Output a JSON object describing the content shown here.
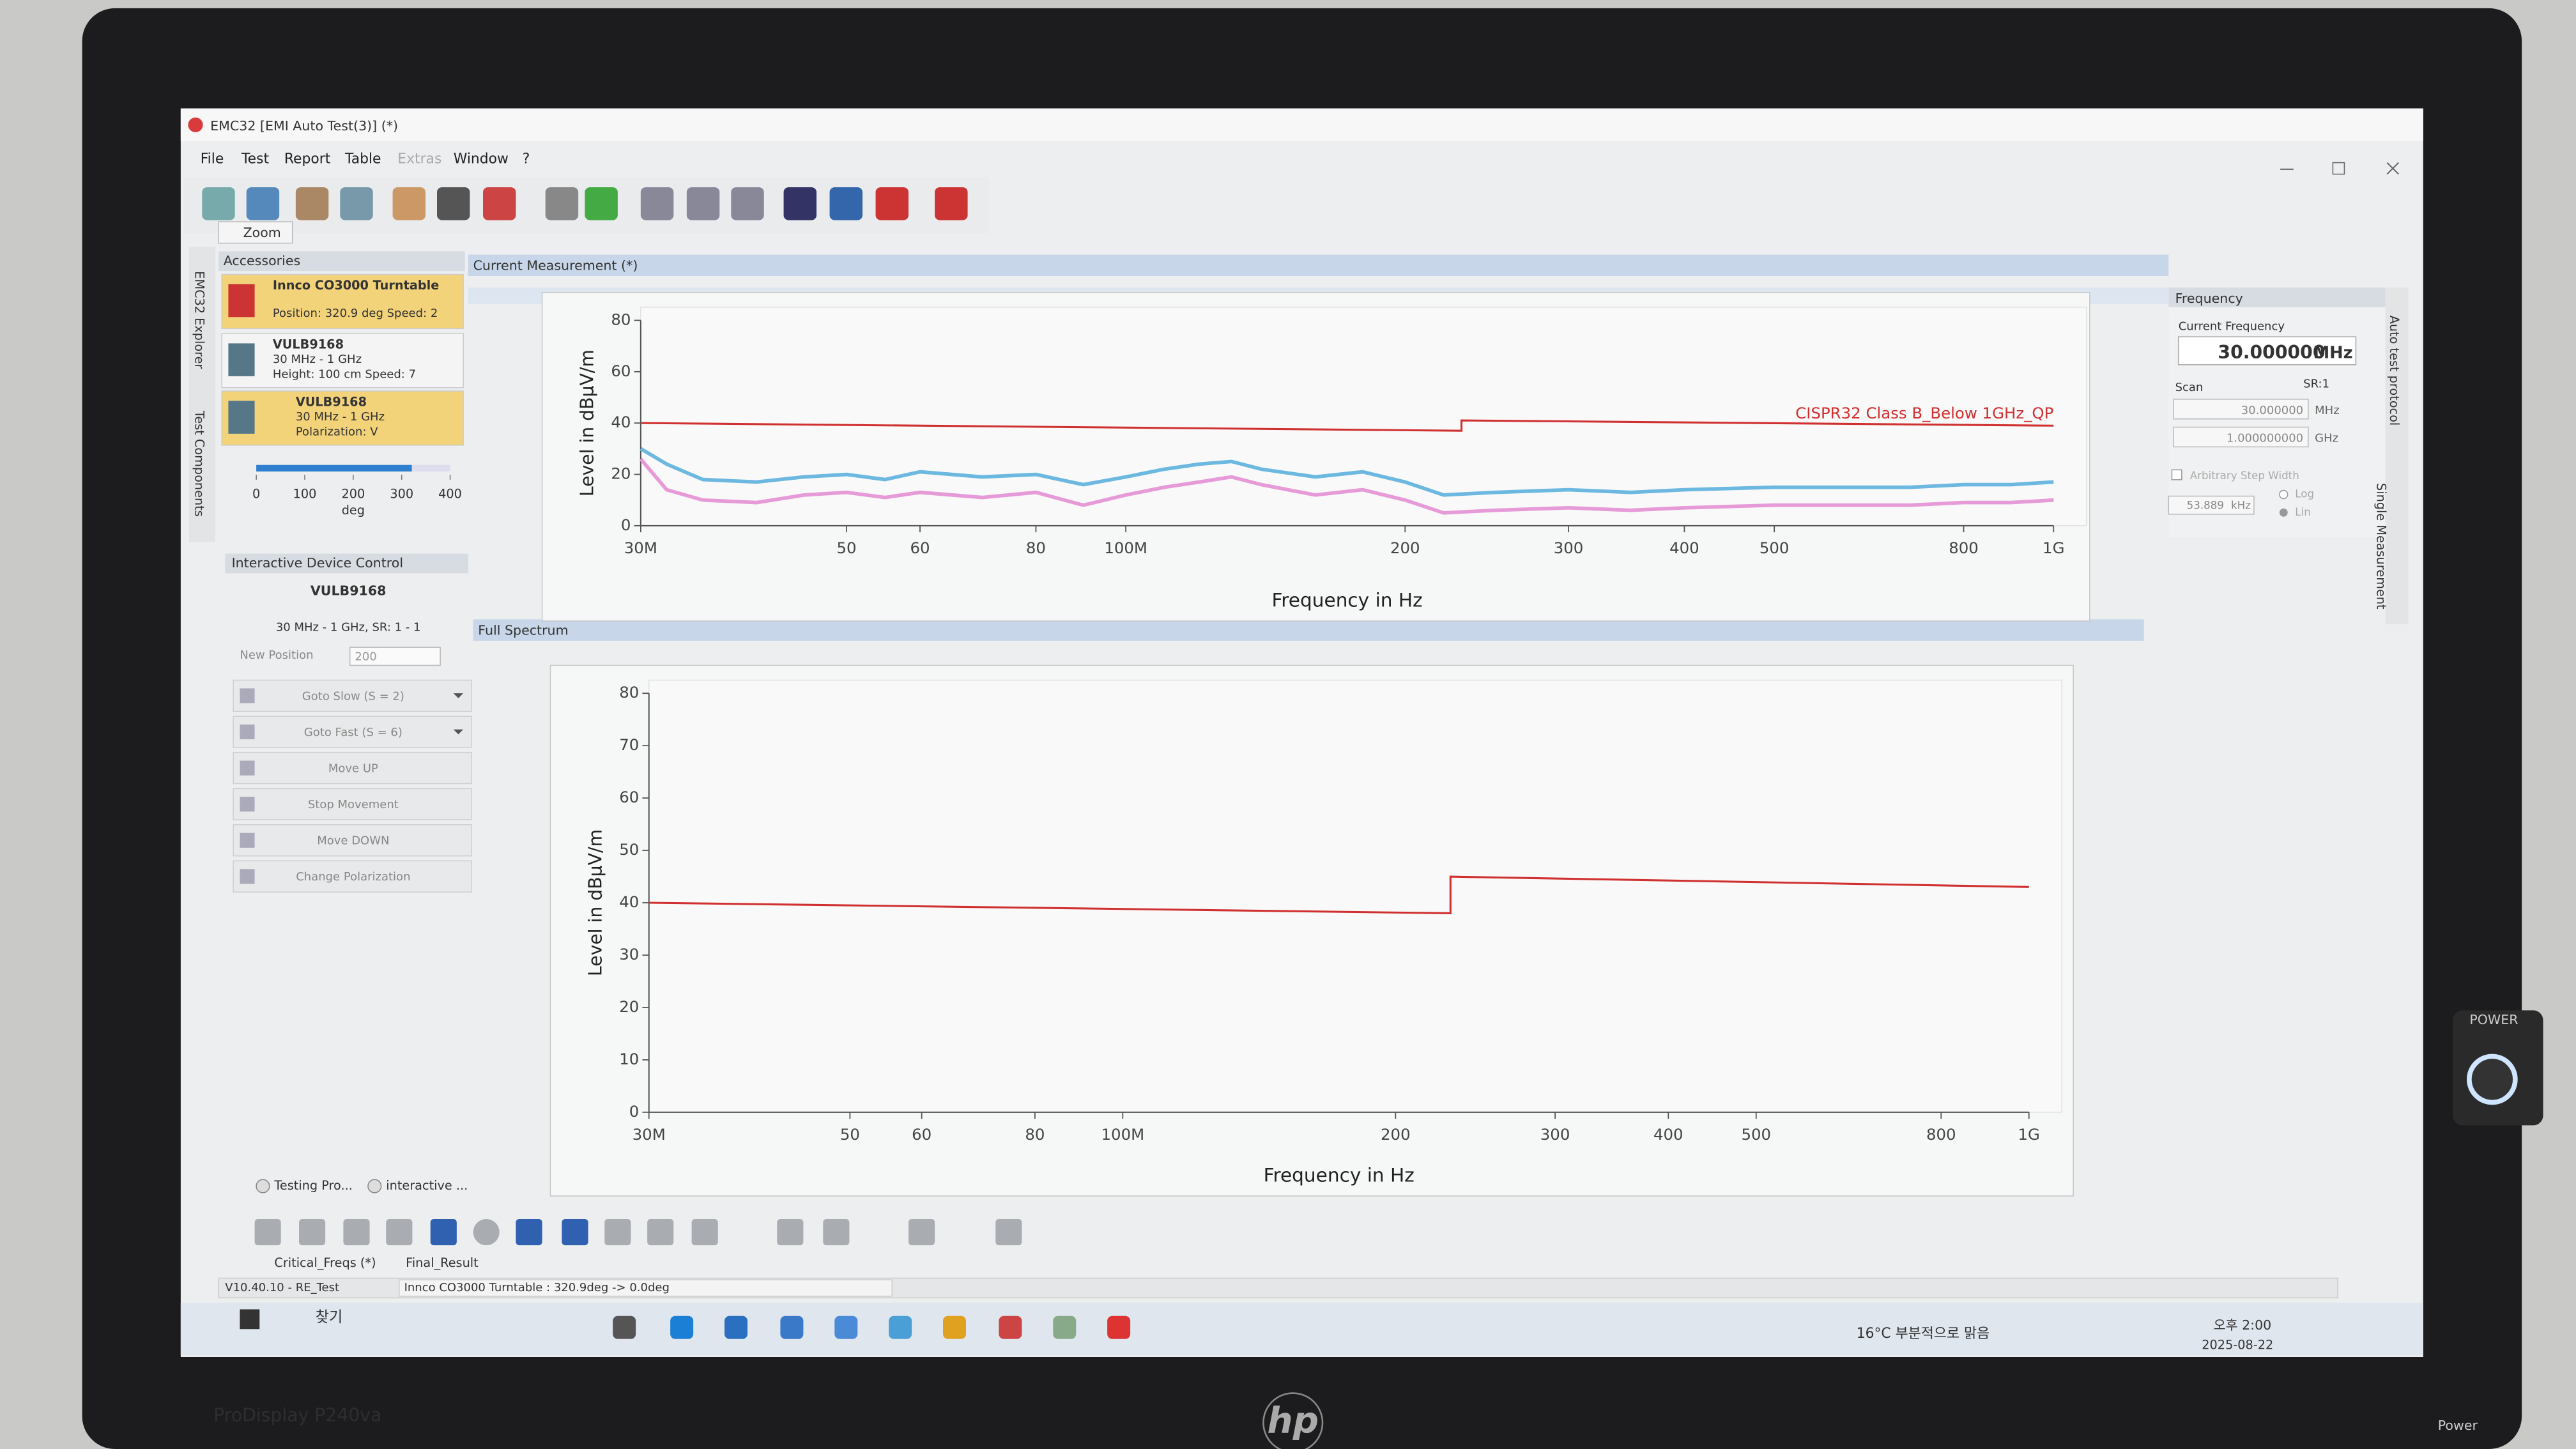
{
  "window": {
    "title": "EMC32 [EMI Auto Test(3)] (*)",
    "menu": [
      "File",
      "Test",
      "Report",
      "Table",
      "Extras",
      "Window",
      "?"
    ],
    "zoom": "Zoom"
  },
  "side_tabs": [
    "EMC32 Explorer",
    "Test Components"
  ],
  "right_tabs": [
    "Auto test protocol",
    "Single Measurement"
  ],
  "accessories": {
    "title": "Accessories",
    "items": [
      {
        "name": "Innco CO3000 Turntable",
        "info": [
          "Position: 320.9 deg Speed: 2"
        ]
      },
      {
        "name": "VULB9168",
        "info": [
          "30 MHz - 1 GHz",
          "Height: 100 cm Speed: 7"
        ]
      },
      {
        "name": "VULB9168",
        "info": [
          "30 MHz - 1 GHz",
          "Polarization: V"
        ]
      }
    ],
    "scale": {
      "position": 320.9,
      "lim": [
        0,
        400
      ],
      "ticks": [
        0,
        100,
        200,
        300,
        400
      ],
      "unit": "deg"
    }
  },
  "device_control": {
    "title": "Interactive Device Control",
    "device": "VULB9168",
    "range": "30 MHz - 1 GHz, SR: 1 - 1",
    "new_position_label": "New Position",
    "new_position": "200",
    "buttons": [
      "Goto Slow (S = 2)",
      "Goto Fast (S = 6)",
      "Move UP",
      "Stop Movement",
      "Move DOWN",
      "Change Polarization"
    ]
  },
  "frequency": {
    "title": "Frequency",
    "current_label": "Current Frequency",
    "current": "30.000000",
    "current_unit": "MHz",
    "scan_label": "Scan",
    "sr": "SR:1",
    "start": "30.000000",
    "start_unit": "MHz",
    "stop": "1.000000000",
    "stop_unit": "GHz",
    "arbitrary": "Arbitrary Step Width",
    "step": "53.889",
    "step_unit": "kHz",
    "log": "Log",
    "lin": "Lin"
  },
  "panels": [
    "Current Measurement (*)",
    "Full Spectrum"
  ],
  "chart_data": [
    {
      "type": "line",
      "xscale": "log",
      "ylabel": "Level in dBµV/m",
      "xlabel": "Frequency in Hz",
      "xlim": [
        30000000,
        1000000000
      ],
      "ylim": [
        0,
        80
      ],
      "xticks": [
        {
          "value": 30000000,
          "label": "30M"
        },
        {
          "value": 50000000,
          "label": "50"
        },
        {
          "value": 60000000,
          "label": "60"
        },
        {
          "value": 80000000,
          "label": "80"
        },
        {
          "value": 100000000,
          "label": "100M"
        },
        {
          "value": 200000000,
          "label": "200"
        },
        {
          "value": 300000000,
          "label": "300"
        },
        {
          "value": 400000000,
          "label": "400"
        },
        {
          "value": 500000000,
          "label": "500"
        },
        {
          "value": 800000000,
          "label": "800"
        },
        {
          "value": 1000000000,
          "label": "1G"
        }
      ],
      "yticks": [
        0,
        20,
        40,
        60,
        80
      ],
      "x": [
        30000000,
        32000000,
        35000000,
        40000000,
        45000000,
        50000000,
        55000000,
        60000000,
        70000000,
        80000000,
        90000000,
        100000000,
        110000000,
        120000000,
        130000000,
        140000000,
        160000000,
        180000000,
        200000000,
        220000000,
        250000000,
        300000000,
        350000000,
        400000000,
        500000000,
        600000000,
        700000000,
        800000000,
        900000000,
        1000000000
      ],
      "series": [
        {
          "color": "#6cb8e0",
          "values": [
            30,
            24,
            18,
            17,
            19,
            20,
            18,
            21,
            19,
            20,
            16,
            19,
            22,
            24,
            25,
            22,
            19,
            21,
            17,
            12,
            13,
            14,
            13,
            14,
            15,
            15,
            15,
            16,
            16,
            17
          ]
        },
        {
          "color": "#e69ad8",
          "values": [
            26,
            14,
            10,
            9,
            12,
            13,
            11,
            13,
            11,
            13,
            8,
            12,
            15,
            17,
            19,
            16,
            12,
            14,
            10,
            5,
            6,
            7,
            6,
            7,
            8,
            8,
            8,
            9,
            9,
            10
          ]
        },
        {
          "name": "CISPR32 Class B_Below 1GHz_QP",
          "color": "#d03030",
          "x": [
            30000000,
            230000000,
            230000000,
            1000000000
          ],
          "values": [
            40,
            37,
            41,
            39
          ]
        }
      ]
    },
    {
      "type": "line",
      "xscale": "log",
      "ylabel": "Level in dBµV/m",
      "xlabel": "Frequency in Hz",
      "xlim": [
        30000000,
        1000000000
      ],
      "ylim": [
        0,
        80
      ],
      "xticks": [
        {
          "value": 30000000,
          "label": "30M"
        },
        {
          "value": 50000000,
          "label": "50"
        },
        {
          "value": 60000000,
          "label": "60"
        },
        {
          "value": 80000000,
          "label": "80"
        },
        {
          "value": 100000000,
          "label": "100M"
        },
        {
          "value": 200000000,
          "label": "200"
        },
        {
          "value": 300000000,
          "label": "300"
        },
        {
          "value": 400000000,
          "label": "400"
        },
        {
          "value": 500000000,
          "label": "500"
        },
        {
          "value": 800000000,
          "label": "800"
        },
        {
          "value": 1000000000,
          "label": "1G"
        }
      ],
      "yticks": [
        0,
        10,
        20,
        30,
        40,
        50,
        60,
        70,
        80
      ],
      "series": [
        {
          "color": "#d03030",
          "x": [
            30000000,
            230000000,
            230000000,
            1000000000
          ],
          "values": [
            40,
            38,
            45,
            43
          ]
        }
      ]
    }
  ],
  "bottom_tabs": [
    "Testing Pro...",
    "interactive ..."
  ],
  "result_tabs": [
    "Critical_Freqs (*)",
    "Final_Result"
  ],
  "status": [
    "V10.40.10 - RE_Test",
    "Innco CO3000 Turntable : 320.9deg -> 0.0deg"
  ],
  "taskbar": {
    "search": "찾기",
    "weather": "16°C 부분적으로 맑음",
    "time": "오후 2:00",
    "date": "2025-08-22"
  },
  "monitor": {
    "model": "ProDisplay P240va",
    "brand": "hp",
    "power": "POWER",
    "power_label": "Power"
  }
}
